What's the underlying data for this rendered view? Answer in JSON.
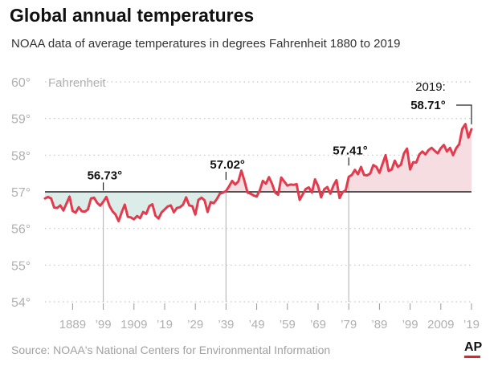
{
  "title": "Global annual temperatures",
  "subtitle": "NOAA data of average temperatures in degrees Fahrenheit 1880 to 2019",
  "source": "Source: NOAA's National Centers for Environmental Information",
  "logo": "AP",
  "chart_data": {
    "type": "area",
    "ylabel": "Fahrenheit",
    "ylim": [
      54,
      60
    ],
    "xlim": [
      1880,
      2019
    ],
    "baseline": 57,
    "y_ticks": [
      {
        "v": 60,
        "label": "60°"
      },
      {
        "v": 59,
        "label": "59°"
      },
      {
        "v": 58,
        "label": "58°"
      },
      {
        "v": 57,
        "label": "57°"
      },
      {
        "v": 56,
        "label": "56°"
      },
      {
        "v": 55,
        "label": "55°"
      },
      {
        "v": 54,
        "label": "54°"
      }
    ],
    "x_ticks": [
      {
        "v": 1889,
        "label": "1889"
      },
      {
        "v": 1899,
        "label": "’99"
      },
      {
        "v": 1909,
        "label": "1909"
      },
      {
        "v": 1919,
        "label": "’19"
      },
      {
        "v": 1929,
        "label": "’29"
      },
      {
        "v": 1939,
        "label": "’39"
      },
      {
        "v": 1949,
        "label": "’49"
      },
      {
        "v": 1959,
        "label": "’59"
      },
      {
        "v": 1969,
        "label": "’69"
      },
      {
        "v": 1979,
        "label": "’79"
      },
      {
        "v": 1989,
        "label": "’89"
      },
      {
        "v": 1999,
        "label": "’99"
      },
      {
        "v": 2009,
        "label": "2009"
      },
      {
        "v": 2019,
        "label": "’19"
      }
    ],
    "annotations": [
      {
        "year": 1899,
        "value": 56.73,
        "label": "56.73°"
      },
      {
        "year": 1939,
        "value": 57.02,
        "label": "57.02°"
      },
      {
        "year": 1979,
        "value": 57.41,
        "label": "57.41°"
      }
    ],
    "last_label": {
      "year": 2019,
      "year_label": "2019:",
      "value_label": "58.71°"
    },
    "colors": {
      "line": "#e23b4e",
      "fill_above": "#f6dde1",
      "fill_below": "#dcede9",
      "baseline": "#222222",
      "grid": "#c8c8c8",
      "tick_label": "#b0b0b0",
      "annotation_line": "#bbbbbb"
    },
    "x": [
      1880,
      1881,
      1882,
      1883,
      1884,
      1885,
      1886,
      1887,
      1888,
      1889,
      1890,
      1891,
      1892,
      1893,
      1894,
      1895,
      1896,
      1897,
      1898,
      1899,
      1900,
      1901,
      1902,
      1903,
      1904,
      1905,
      1906,
      1907,
      1908,
      1909,
      1910,
      1911,
      1912,
      1913,
      1914,
      1915,
      1916,
      1917,
      1918,
      1919,
      1920,
      1921,
      1922,
      1923,
      1924,
      1925,
      1926,
      1927,
      1928,
      1929,
      1930,
      1931,
      1932,
      1933,
      1934,
      1935,
      1936,
      1937,
      1938,
      1939,
      1940,
      1941,
      1942,
      1943,
      1944,
      1945,
      1946,
      1947,
      1948,
      1949,
      1950,
      1951,
      1952,
      1953,
      1954,
      1955,
      1956,
      1957,
      1958,
      1959,
      1960,
      1961,
      1962,
      1963,
      1964,
      1965,
      1966,
      1967,
      1968,
      1969,
      1970,
      1971,
      1972,
      1973,
      1974,
      1975,
      1976,
      1977,
      1978,
      1979,
      1980,
      1981,
      1982,
      1983,
      1984,
      1985,
      1986,
      1987,
      1988,
      1989,
      1990,
      1991,
      1992,
      1993,
      1994,
      1995,
      1996,
      1997,
      1998,
      1999,
      2000,
      2001,
      2002,
      2003,
      2004,
      2005,
      2006,
      2007,
      2008,
      2009,
      2010,
      2011,
      2012,
      2013,
      2014,
      2015,
      2016,
      2017,
      2018,
      2019
    ],
    "values": [
      56.82,
      56.86,
      56.82,
      56.57,
      56.56,
      56.63,
      56.49,
      56.68,
      56.87,
      56.48,
      56.43,
      56.58,
      56.47,
      56.46,
      56.52,
      56.82,
      56.84,
      56.7,
      56.62,
      56.73,
      56.86,
      56.62,
      56.47,
      56.38,
      56.2,
      56.44,
      56.65,
      56.32,
      56.3,
      56.25,
      56.34,
      56.28,
      56.45,
      56.4,
      56.61,
      56.66,
      56.35,
      56.27,
      56.44,
      56.52,
      56.6,
      56.63,
      56.44,
      56.56,
      56.58,
      56.65,
      56.85,
      56.63,
      56.61,
      56.38,
      56.78,
      56.84,
      56.77,
      56.45,
      56.72,
      56.69,
      56.8,
      56.95,
      56.98,
      57.02,
      57.15,
      57.3,
      57.2,
      57.28,
      57.58,
      57.3,
      56.98,
      56.95,
      56.9,
      56.87,
      57.04,
      57.3,
      57.22,
      57.4,
      57.22,
      56.98,
      56.92,
      57.39,
      57.28,
      57.17,
      57.2,
      57.19,
      57.21,
      56.78,
      56.93,
      57.08,
      57.12,
      56.98,
      57.34,
      57.16,
      56.85,
      57.07,
      57.13,
      56.95,
      57.17,
      57.32,
      56.83,
      56.99,
      57.04,
      57.41,
      57.46,
      57.6,
      57.48,
      57.68,
      57.46,
      57.45,
      57.5,
      57.73,
      57.68,
      57.52,
      57.76,
      58.0,
      57.57,
      57.61,
      57.85,
      57.68,
      57.74,
      58.05,
      58.18,
      57.61,
      57.81,
      57.8,
      58.02,
      58.1,
      58.02,
      58.14,
      58.2,
      58.12,
      58.05,
      58.19,
      58.28,
      58.1,
      58.2,
      58.0,
      58.19,
      58.3,
      58.72,
      58.85,
      58.48,
      58.71
    ]
  }
}
